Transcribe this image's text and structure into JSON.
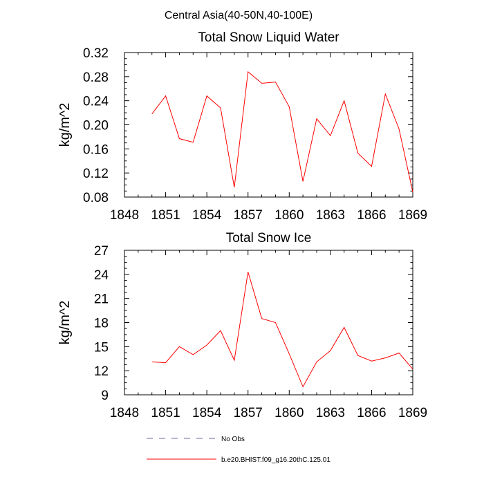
{
  "figure": {
    "suptitle": "Central Asia(40-50N,40-100E)"
  },
  "chart_data": [
    {
      "type": "line",
      "title": "Total Snow Liquid Water",
      "xlabel": "",
      "ylabel": "kg/m^2",
      "xlim": [
        1848,
        1869
      ],
      "ylim": [
        0.08,
        0.32
      ],
      "xticks": [
        "1848",
        "1851",
        "1854",
        "1857",
        "1860",
        "1863",
        "1866",
        "1869"
      ],
      "yticks": [
        "0.08",
        "0.12",
        "0.16",
        "0.20",
        "0.24",
        "0.28",
        "0.32"
      ],
      "grid": false,
      "x": [
        1850,
        1851,
        1852,
        1853,
        1854,
        1855,
        1856,
        1857,
        1858,
        1859,
        1860,
        1861,
        1862,
        1863,
        1864,
        1865,
        1866,
        1867,
        1868,
        1869
      ],
      "series": [
        {
          "name": "b.e20.BHIST.f09_g16.20thC.125.01",
          "color": "#ff0000",
          "values": [
            0.218,
            0.248,
            0.177,
            0.171,
            0.248,
            0.228,
            0.096,
            0.288,
            0.269,
            0.271,
            0.23,
            0.106,
            0.21,
            0.182,
            0.24,
            0.153,
            0.131,
            0.251,
            0.193,
            0.088
          ]
        }
      ]
    },
    {
      "type": "line",
      "title": "Total Snow Ice",
      "xlabel": "",
      "ylabel": "kg/m^2",
      "xlim": [
        1848,
        1869
      ],
      "ylim": [
        9,
        27
      ],
      "xticks": [
        "1848",
        "1851",
        "1854",
        "1857",
        "1860",
        "1863",
        "1866",
        "1869"
      ],
      "yticks": [
        "9",
        "12",
        "15",
        "18",
        "21",
        "24",
        "27"
      ],
      "grid": false,
      "x": [
        1850,
        1851,
        1852,
        1853,
        1854,
        1855,
        1856,
        1857,
        1858,
        1859,
        1860,
        1861,
        1862,
        1863,
        1864,
        1865,
        1866,
        1867,
        1868,
        1869
      ],
      "series": [
        {
          "name": "b.e20.BHIST.f09_g16.20thC.125.01",
          "color": "#ff0000",
          "values": [
            13.1,
            13.0,
            15.0,
            14.0,
            15.2,
            17.0,
            13.3,
            24.3,
            18.5,
            18.0,
            14.1,
            10.0,
            13.1,
            14.5,
            17.4,
            13.9,
            13.2,
            13.6,
            14.2,
            12.2
          ]
        }
      ]
    }
  ],
  "legend": {
    "placement": "bottom",
    "items": [
      {
        "label": "No Obs",
        "color": "#6a6aa8",
        "style": "dashed"
      },
      {
        "label": "b.e20.BHIST.f09_g16.20thC.125.01",
        "color": "#ff0000",
        "style": "solid"
      }
    ]
  }
}
